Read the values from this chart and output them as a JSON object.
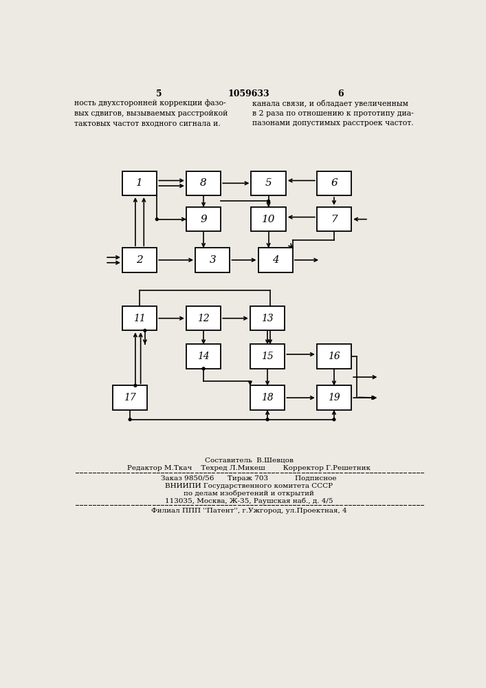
{
  "page_header": "1059633",
  "page_left": "5",
  "page_right": "6",
  "text_left": "ность двухсторонней коррекции фазо-\nвых сдвигов, вызываемых расстройкой\nтактовых частот входного сигнала и.",
  "text_right": "канала связи, и обладает увеличенным\nв 2 раза по отношению к прототипу диа-\nпазонами допустимых расстроек частот.",
  "footer_line1": "Составитель  В.Шевцов",
  "footer_line2": "Редактор М.Ткач    Техред Л.Микеш        Корректор Г.Решетник",
  "footer_line3": "Заказ 9850/56      Тираж 703            Подписное",
  "footer_line4": "ВНИИПИ Государственного комитета СССР",
  "footer_line5": "по делам изобретений и открытий",
  "footer_line6": "113035, Москва, Ж-35, Раушская наб., д. 4/5",
  "footer_line7": "Филиал ППП ''Патент'', г.Ужгород, ул.Проектная, 4",
  "bg_color": "#ede9e3",
  "box_color": "#ffffff",
  "box_edge": "#000000"
}
